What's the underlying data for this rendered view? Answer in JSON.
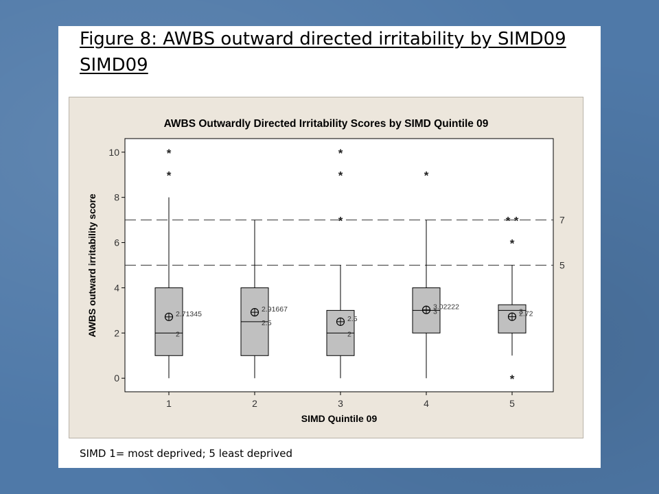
{
  "slide": {
    "title": "Figure 8: AWBS outward directed irritability by SIMD09 SIMD09",
    "footnote": "SIMD 1= most deprived; 5 least deprived"
  },
  "chart_data": {
    "type": "box",
    "title": "AWBS Outwardly Directed Irritability Scores by SIMD Quintile 09",
    "xlabel": "SIMD Quintile 09",
    "ylabel": "AWBS outward irritability score",
    "categories": [
      "1",
      "2",
      "3",
      "4",
      "5"
    ],
    "ylim": [
      -0.6,
      10.6
    ],
    "yticks": [
      0,
      2,
      4,
      6,
      8,
      10
    ],
    "grid": false,
    "reference_lines": [
      {
        "value": 7,
        "label": "7"
      },
      {
        "value": 5,
        "label": "5"
      }
    ],
    "boxes": [
      {
        "category": "1",
        "whisker_low": 0,
        "q1": 1,
        "median": 2,
        "q3": 4,
        "whisker_high": 8,
        "mean": 2.71345,
        "mean_label": "2.71345",
        "median_label": "2",
        "outliers": [
          9,
          10
        ]
      },
      {
        "category": "2",
        "whisker_low": 0,
        "q1": 1,
        "median": 2.5,
        "q3": 4,
        "whisker_high": 7,
        "mean": 2.91667,
        "mean_label": "2.91667",
        "median_label": "2.5",
        "outliers": []
      },
      {
        "category": "3",
        "whisker_low": 0,
        "q1": 1,
        "median": 2,
        "q3": 3,
        "whisker_high": 5,
        "mean": 2.5,
        "mean_label": "2.5",
        "median_label": "2",
        "outliers": [
          7,
          9,
          10
        ]
      },
      {
        "category": "4",
        "whisker_low": 0,
        "q1": 2,
        "median": 3,
        "q3": 4,
        "whisker_high": 7,
        "mean": 3.02222,
        "mean_label": "3.02222",
        "median_label": "3",
        "outliers": [
          9
        ]
      },
      {
        "category": "5",
        "whisker_low": 1,
        "q1": 2,
        "median": 3,
        "q3": 3.25,
        "whisker_high": 5,
        "mean": 2.72,
        "mean_label": "2.72",
        "median_label": "3",
        "outliers": [
          0,
          6,
          7,
          7
        ]
      }
    ],
    "colors": {
      "box_fill": "#c0c0c0",
      "line": "#000000",
      "title": "#000000"
    }
  }
}
